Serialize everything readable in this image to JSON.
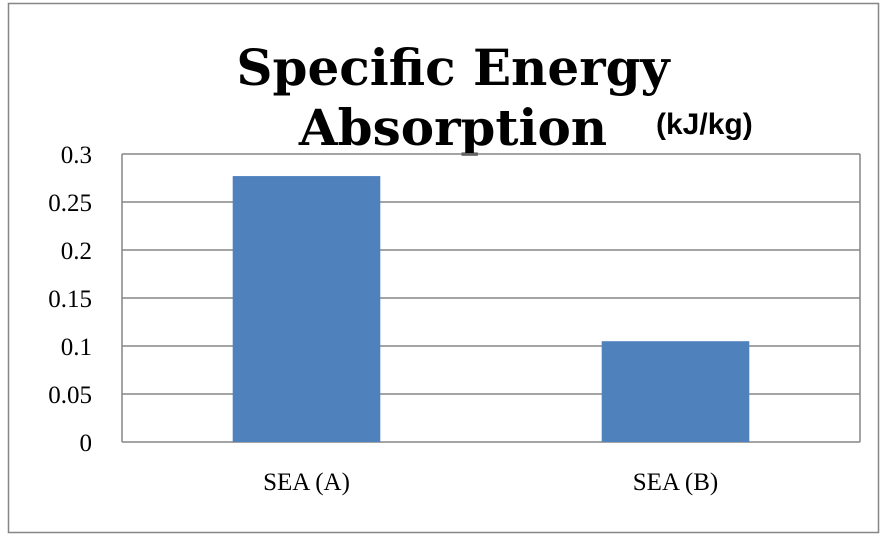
{
  "chart_data": {
    "type": "bar",
    "title_line1": "Specific Energy",
    "title_line2": "Absorption",
    "unit_label": "(kJ/kg)",
    "categories": [
      "SEA (A)",
      "SEA (B)"
    ],
    "values": [
      0.277,
      0.105
    ],
    "ylim": [
      0,
      0.3
    ],
    "yticks": [
      "0",
      "0.05",
      "0.1",
      "0.15",
      "0.2",
      "0.25",
      "0.3"
    ],
    "ytick_values": [
      0,
      0.05,
      0.1,
      0.15,
      0.2,
      0.25,
      0.3
    ],
    "grid": true,
    "legend": "none",
    "bar_color": "#4F81BD",
    "grid_color": "#868686",
    "frame_color": "#868686"
  }
}
